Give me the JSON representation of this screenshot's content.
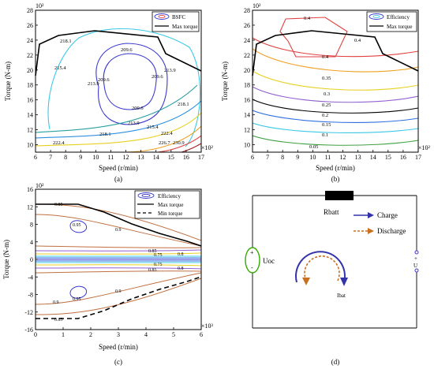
{
  "panels": {
    "a": {
      "caption": "(a)",
      "xlabel": "Speed (r/min)",
      "ylabel": "Torque (N-m)",
      "x_exponent": "×10²",
      "y_exponent": "10²",
      "legend": [
        "BSFC",
        "Max torque"
      ],
      "contour_labels": [
        "218.1",
        "215.4",
        "209.6",
        "209.6",
        "213.9",
        "209.6",
        "213.9",
        "209.6",
        "218.1",
        "213.9",
        "215.4",
        "218.1",
        "222.4",
        "222.4",
        "226.7",
        "230.9"
      ]
    },
    "b": {
      "caption": "(b)",
      "xlabel": "Speed (r/min)",
      "ylabel": "Torque (N-m)",
      "x_exponent": "×10²",
      "y_exponent": "10²",
      "legend": [
        "Efficiency",
        "Max torque"
      ],
      "contour_labels": [
        "0.4",
        "0.4",
        "0.4",
        "0.35",
        "0.3",
        "0.25",
        "0.2",
        "0.15",
        "0.1",
        "0.05"
      ]
    },
    "c": {
      "caption": "(c)",
      "xlabel": "Speed (r/min)",
      "ylabel": "Torque (N-m)",
      "x_exponent": "×10³",
      "y_exponent": "10²",
      "legend": [
        "Efficiency",
        "Max torque",
        "Min torque"
      ],
      "contour_labels": [
        "0.85",
        "0.95",
        "0.9",
        "0.85",
        "0.8",
        "0.75",
        "0.75",
        "0.8",
        "0.85",
        "0.9",
        "0.95",
        "0.9",
        "0.85"
      ]
    },
    "d": {
      "caption": "(d)",
      "resistor": "Rbatt",
      "source": "Uoc",
      "source_plus": "+",
      "source_minus": "-",
      "terminal_plus": "+",
      "terminal_label": "U",
      "current": "Ibat",
      "charge": "Charge",
      "discharge": "Discharge"
    }
  },
  "colors": {
    "max_torque": "#000000",
    "charge_arrow": "#3333aa",
    "discharge_arrow": "#c87020",
    "source_ring": "#33aa00"
  },
  "chart_data": [
    {
      "type": "contour",
      "name": "a",
      "x_ticks": [
        6,
        7,
        8,
        9,
        10,
        11,
        12,
        13,
        14,
        15,
        16,
        17
      ],
      "y_ticks": [
        10,
        12,
        14,
        16,
        18,
        20,
        22,
        24,
        26,
        28
      ],
      "xlim": [
        6,
        17
      ],
      "ylim": [
        9,
        28
      ],
      "series": [
        {
          "name": "Max torque",
          "x": [
            6,
            6.4,
            7.5,
            10,
            14,
            14.5,
            17
          ],
          "y": [
            19.5,
            24.5,
            25.3,
            25.6,
            24.5,
            22.8,
            20
          ]
        }
      ],
      "contour_levels": [
        209.6,
        213.9,
        215.4,
        218.1,
        222.4,
        226.7,
        230.9
      ]
    },
    {
      "type": "contour",
      "name": "b",
      "x_ticks": [
        6,
        7,
        8,
        9,
        10,
        11,
        12,
        13,
        14,
        15,
        16,
        17
      ],
      "y_ticks": [
        10,
        12,
        14,
        16,
        18,
        20,
        22,
        24,
        26,
        28
      ],
      "xlim": [
        6,
        17
      ],
      "ylim": [
        9,
        28
      ],
      "series": [
        {
          "name": "Max torque",
          "x": [
            6,
            6.4,
            7.5,
            10,
            14,
            14.5,
            17
          ],
          "y": [
            19.5,
            24.5,
            25.3,
            25.6,
            24.5,
            22.8,
            20
          ]
        }
      ],
      "contour_levels": [
        0.05,
        0.1,
        0.15,
        0.2,
        0.25,
        0.3,
        0.35,
        0.4
      ]
    },
    {
      "type": "contour",
      "name": "c",
      "x_ticks": [
        0,
        1,
        2,
        3,
        4,
        5,
        6
      ],
      "y_ticks": [
        -16,
        -12,
        -8,
        -4,
        0,
        4,
        8,
        12,
        16
      ],
      "xlim": [
        0,
        6
      ],
      "ylim": [
        -16,
        16
      ],
      "series": [
        {
          "name": "Max torque",
          "x": [
            0,
            1.55,
            2.5,
            3.5,
            4.5,
            5.5,
            6
          ],
          "y": [
            13.1,
            13.1,
            11.2,
            8.3,
            6,
            4.2,
            3.5
          ]
        },
        {
          "name": "Min torque",
          "x": [
            0,
            1.55,
            2.5,
            3.5,
            4.5,
            5.5,
            6
          ],
          "y": [
            -13.1,
            -13.1,
            -11.2,
            -8.3,
            -6,
            -4.2,
            -3.5
          ]
        }
      ],
      "contour_levels": [
        0.75,
        0.8,
        0.85,
        0.9,
        0.95
      ]
    }
  ]
}
